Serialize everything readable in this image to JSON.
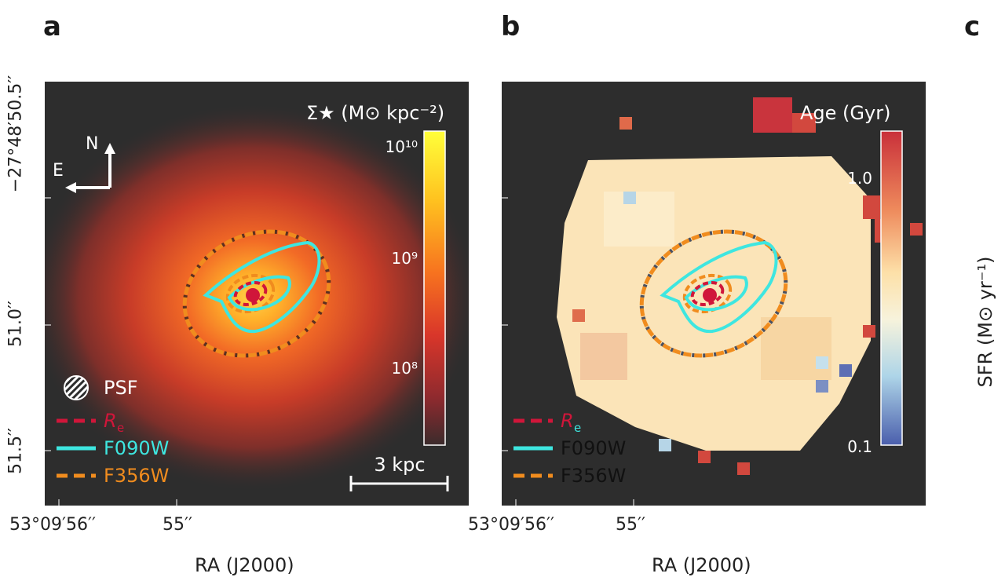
{
  "figure": {
    "panels": [
      {
        "letter": "a",
        "colorbar_label": "Σ★ (M⊙ kpc⁻²)",
        "colorbar_ticks": [
          "10¹⁰",
          "10⁹",
          "10⁸"
        ],
        "compass": {
          "n": "N",
          "e": "E"
        },
        "legend": {
          "psf": "PSF",
          "re": "R",
          "re_sub": "e",
          "f090w": "F090W",
          "f356w": "F356W"
        },
        "scalebar": "3 kpc",
        "y_ticks": [
          "−27°48′50.5′′",
          "51.0′′",
          "51.5′′"
        ],
        "x_ticks": [
          "53°09′56′′",
          "55′′"
        ],
        "x_title": "RA (J2000)"
      },
      {
        "letter": "b",
        "colorbar_label": "Age (Gyr)",
        "colorbar_ticks": [
          "1.0",
          "0.1"
        ],
        "legend": {
          "re": "R",
          "re_sub": "e",
          "f090w": "F090W",
          "f356w": "F356W"
        },
        "x_ticks": [
          "53°09′56′′",
          "55′′"
        ],
        "x_title": "RA (J2000)"
      },
      {
        "letter": "c",
        "ylabel": "SFR (M⊙ yr⁻¹)"
      }
    ],
    "colors": {
      "background": "#2d2d2d",
      "re": "#d0163a",
      "f090w": "#3ee6e0",
      "f356w": "#f08c1e"
    }
  }
}
